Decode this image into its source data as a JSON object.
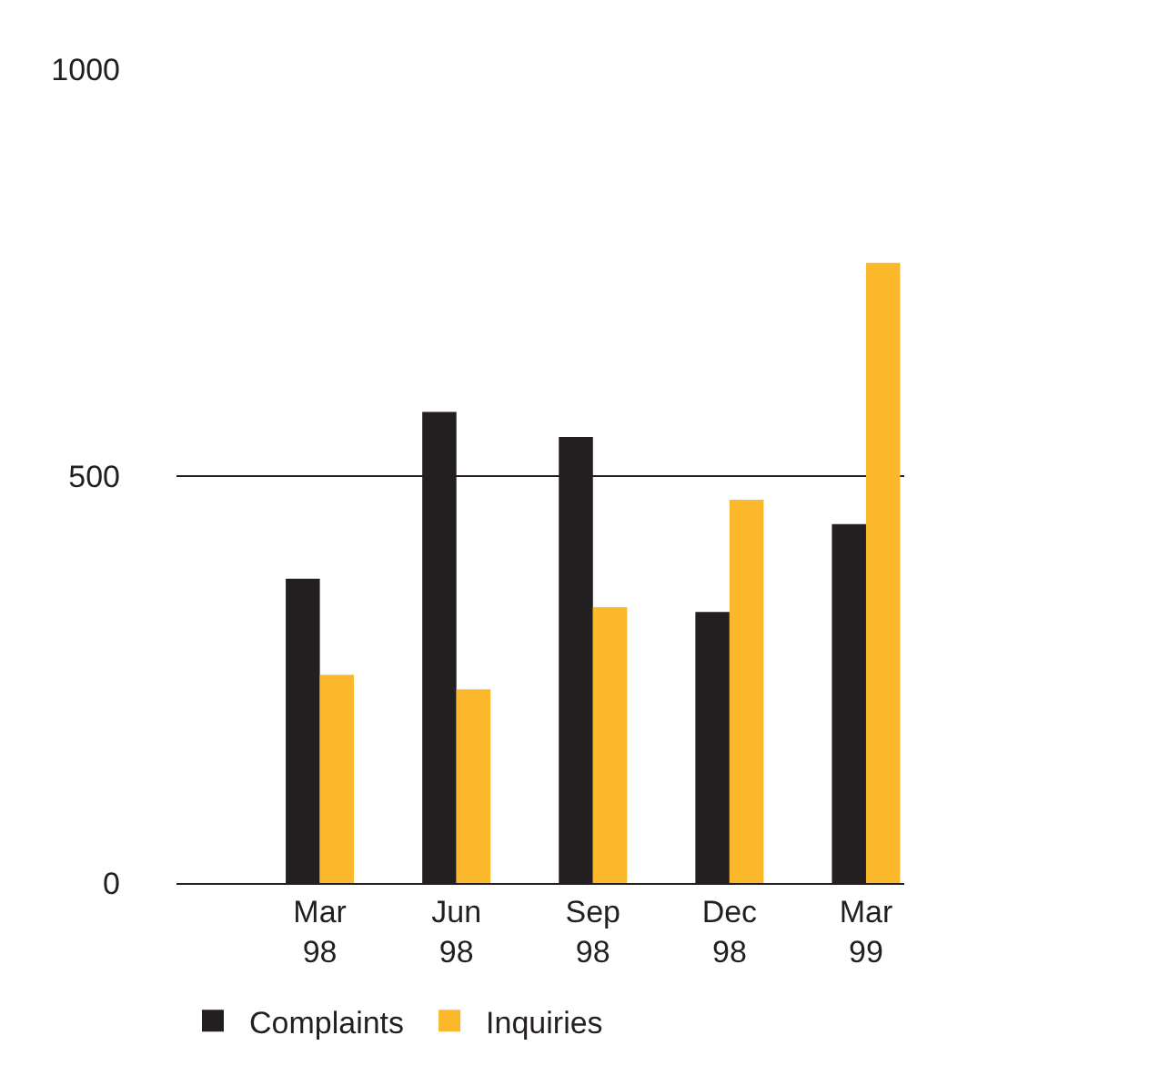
{
  "chart_data": {
    "type": "bar",
    "categories": [
      "Mar 98",
      "Jun 98",
      "Sep 98",
      "Dec 98",
      "Mar 99"
    ],
    "series": [
      {
        "name": "Complaints",
        "color": "#231f20",
        "values": [
          374,
          579,
          548,
          333,
          441
        ]
      },
      {
        "name": "Inquiries",
        "color": "#fbb82b",
        "values": [
          256,
          238,
          339,
          471,
          762
        ]
      }
    ],
    "ylim": [
      0,
      1000
    ],
    "yticks": [
      0,
      500,
      1000
    ],
    "grid": "y",
    "legend": "bottom left"
  }
}
